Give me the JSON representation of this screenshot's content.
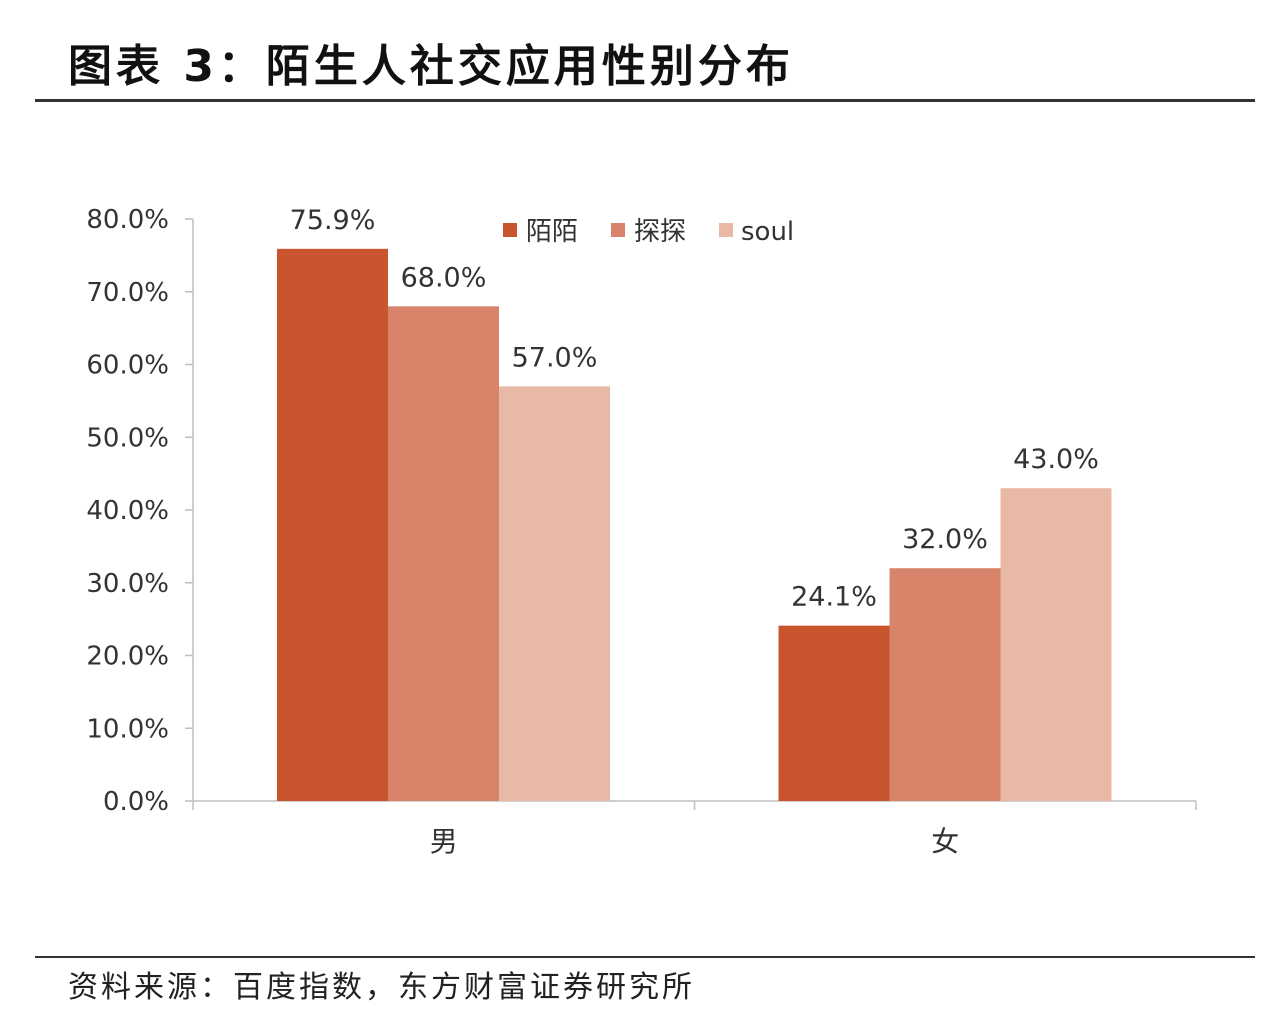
{
  "header": {
    "title": "图表 3：陌生人社交应用性别分布"
  },
  "footer": {
    "source": "资料来源：百度指数，东方财富证券研究所"
  },
  "chart_data": {
    "type": "bar",
    "categories": [
      "男",
      "女"
    ],
    "series": [
      {
        "name": "陌陌",
        "values": [
          75.9,
          24.1
        ],
        "labels": [
          "75.9%",
          "24.1%"
        ],
        "color": "#C9552F"
      },
      {
        "name": "探探",
        "values": [
          68.0,
          32.0
        ],
        "labels": [
          "68.0%",
          "32.0%"
        ],
        "color": "#D8846A"
      },
      {
        "name": "soul",
        "values": [
          57.0,
          43.0
        ],
        "labels": [
          "57.0%",
          "43.0%"
        ],
        "color": "#E8B9A5"
      }
    ],
    "y_ticks": [
      0,
      10,
      20,
      30,
      40,
      50,
      60,
      70,
      80
    ],
    "y_tick_labels": [
      "0.0%",
      "10.0%",
      "20.0%",
      "30.0%",
      "40.0%",
      "50.0%",
      "60.0%",
      "70.0%",
      "80.0%"
    ],
    "ylim": [
      0,
      80
    ],
    "grid": false,
    "legend_position": "top-center"
  }
}
